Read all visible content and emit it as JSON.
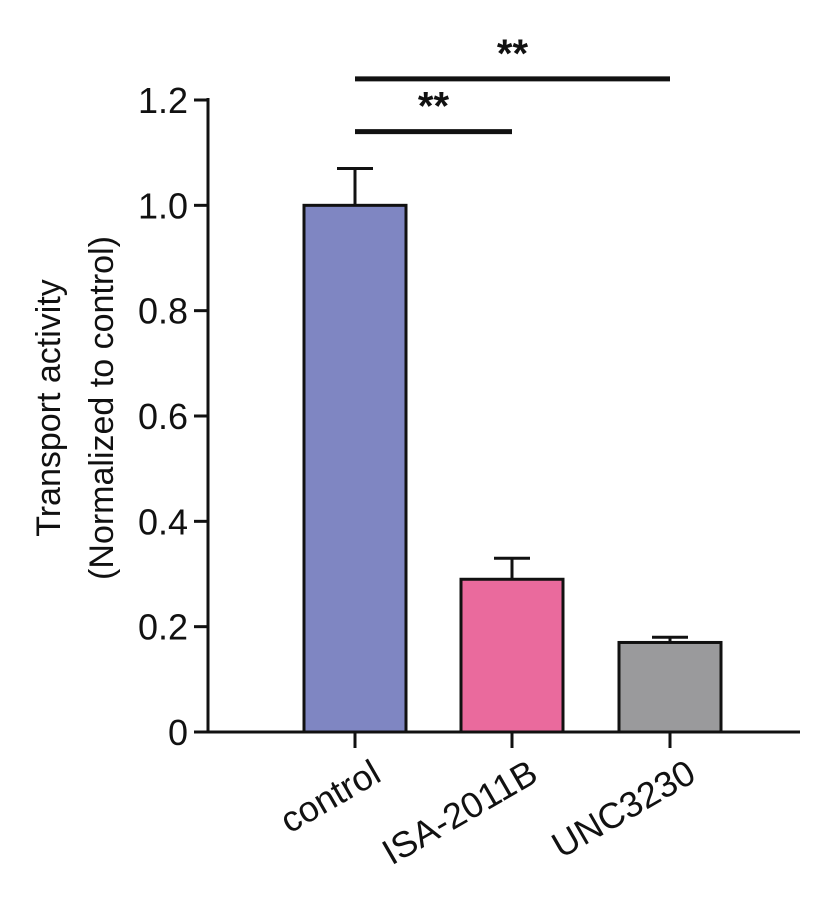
{
  "chart_data": {
    "type": "bar",
    "categories": [
      "control",
      "ISA-2011B",
      "UNC3230"
    ],
    "values": [
      1.0,
      0.29,
      0.17
    ],
    "errors": [
      0.07,
      0.04,
      0.01
    ],
    "colors": [
      "#7f86c2",
      "#ea6a9d",
      "#9a9a9c"
    ],
    "ylabel_line1": "Transport activity",
    "ylabel_line2": "(Normalized to control)",
    "ylim": [
      0,
      1.2
    ],
    "yticks": [
      0,
      0.2,
      0.4,
      0.6,
      0.8,
      1.0,
      1.2
    ],
    "ytick_labels": [
      "0",
      "0.2",
      "0.4",
      "0.6",
      "0.8",
      "1.0",
      "1.2"
    ],
    "grid": false,
    "significance": [
      {
        "from": 0,
        "to": 1,
        "label": "**",
        "level": 1.14
      },
      {
        "from": 0,
        "to": 2,
        "label": "**",
        "level": 1.24
      }
    ]
  }
}
